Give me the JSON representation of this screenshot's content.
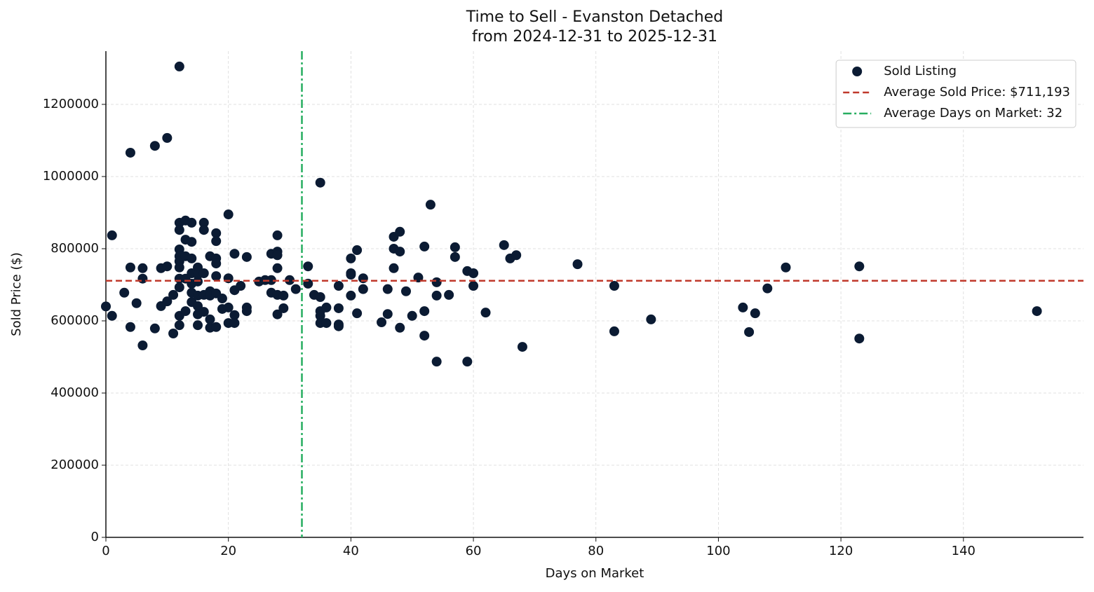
{
  "chart_data": {
    "type": "scatter",
    "title_lines": [
      "Time to Sell - Evanston Detached",
      "from 2024-12-31 to 2025-12-31"
    ],
    "x_label": "Days on Market",
    "y_label": "Sold Price ($)",
    "xlim": [
      0,
      159.6
    ],
    "ylim": [
      0,
      1347500
    ],
    "xticks": [
      0,
      20,
      40,
      60,
      80,
      100,
      120,
      140
    ],
    "yticks": [
      0,
      200000,
      400000,
      600000,
      800000,
      1000000,
      1200000
    ],
    "grid": true,
    "legend": "upper right",
    "series": [
      {
        "name": "Sold Listing",
        "color": "#0b1b33",
        "x": [
          0,
          1,
          1,
          3,
          4,
          4,
          4,
          5,
          6,
          6,
          6,
          8,
          8,
          9,
          9,
          10,
          10,
          10,
          11,
          11,
          12,
          12,
          12,
          12,
          12,
          12,
          12,
          12,
          12,
          12,
          12,
          13,
          13,
          13,
          13,
          13,
          14,
          14,
          14,
          14,
          14,
          14,
          14,
          15,
          15,
          15,
          15,
          15,
          15,
          15,
          16,
          16,
          16,
          16,
          16,
          17,
          17,
          17,
          17,
          17,
          18,
          18,
          18,
          18,
          18,
          18,
          18,
          19,
          19,
          20,
          20,
          20,
          20,
          21,
          21,
          21,
          21,
          22,
          23,
          23,
          23,
          25,
          26,
          27,
          27,
          27,
          28,
          28,
          28,
          28,
          28,
          28,
          29,
          29,
          30,
          31,
          33,
          33,
          34,
          35,
          35,
          35,
          35,
          35,
          36,
          36,
          38,
          38,
          38,
          38,
          40,
          40,
          40,
          40,
          41,
          41,
          42,
          42,
          45,
          46,
          46,
          47,
          47,
          47,
          48,
          48,
          48,
          49,
          50,
          51,
          52,
          52,
          52,
          53,
          54,
          54,
          54,
          56,
          57,
          57,
          59,
          59,
          60,
          60,
          62,
          65,
          66,
          67,
          68,
          77,
          83,
          83,
          89,
          104,
          105,
          106,
          108,
          111,
          123,
          123,
          152
        ],
        "values": [
          640000,
          614000,
          837000,
          678000,
          1066000,
          748000,
          583000,
          649000,
          746000,
          717000,
          532000,
          1085000,
          579000,
          746000,
          641000,
          1107000,
          751000,
          654000,
          672000,
          565000,
          1305000,
          872000,
          852000,
          798000,
          779000,
          765000,
          748000,
          717000,
          693000,
          614000,
          588000,
          878000,
          825000,
          779000,
          717000,
          627000,
          872000,
          819000,
          773000,
          732000,
          703000,
          678000,
          652000,
          748000,
          728000,
          709000,
          670000,
          641000,
          618000,
          588000,
          872000,
          852000,
          732000,
          672000,
          625000,
          779000,
          682000,
          670000,
          604000,
          581000,
          843000,
          821000,
          773000,
          759000,
          724000,
          676000,
          583000,
          662000,
          633000,
          895000,
          718000,
          637000,
          594000,
          786000,
          685000,
          616000,
          594000,
          697000,
          777000,
          637000,
          627000,
          709000,
          713000,
          786000,
          713000,
          678000,
          837000,
          792000,
          782000,
          746000,
          672000,
          618000,
          670000,
          635000,
          713000,
          688000,
          751000,
          703000,
          672000,
          983000,
          666000,
          627000,
          614000,
          594000,
          637000,
          594000,
          697000,
          635000,
          590000,
          585000,
          773000,
          732000,
          728000,
          670000,
          796000,
          621000,
          718000,
          688000,
          596000,
          688000,
          619000,
          833000,
          800000,
          746000,
          847000,
          792000,
          581000,
          682000,
          614000,
          720000,
          806000,
          627000,
          559000,
          922000,
          707000,
          670000,
          487000,
          672000,
          804000,
          777000,
          738000,
          487000,
          732000,
          697000,
          623000,
          810000,
          773000,
          782000,
          528000,
          757000,
          697000,
          571000,
          604000,
          637000,
          569000,
          621000,
          690000,
          748000,
          751000,
          551000,
          627000
        ]
      }
    ],
    "lines": [
      {
        "name": "Average Sold Price: $711,193",
        "orientation": "horizontal",
        "value": 711193,
        "color": "#c0392b",
        "style": "dashed"
      },
      {
        "name": "Average Days on Market: 32",
        "orientation": "vertical",
        "value": 32,
        "color": "#27ae60",
        "style": "dashdot"
      }
    ]
  }
}
